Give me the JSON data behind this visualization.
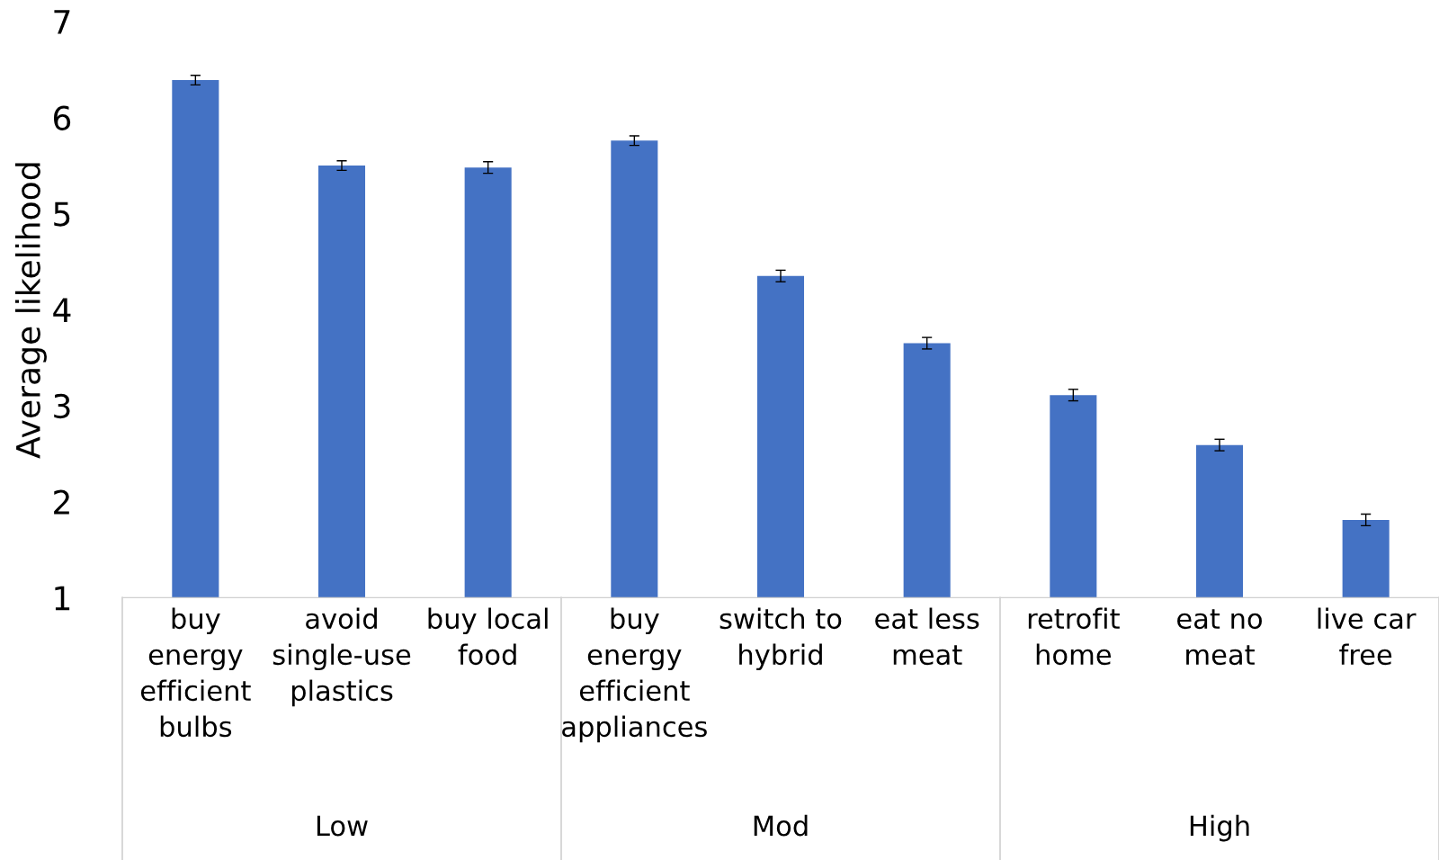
{
  "chart_data": {
    "type": "bar",
    "ylabel": "Average likelihood",
    "categories": [
      "buy energy efficient bulbs",
      "avoid single-use plastics",
      "buy local food",
      "buy energy efficient appliances",
      "switch to hybrid",
      "eat less meat",
      "retrofit home",
      "eat no meat",
      "live car free"
    ],
    "values": [
      6.39,
      5.5,
      5.48,
      5.76,
      4.35,
      3.65,
      3.11,
      2.59,
      1.81
    ],
    "errors": [
      0.05,
      0.05,
      0.06,
      0.05,
      0.06,
      0.06,
      0.06,
      0.06,
      0.06
    ],
    "color": "#4472c4",
    "ylim": [
      1,
      7
    ],
    "yticks": [
      1,
      2,
      3,
      4,
      5,
      6,
      7
    ],
    "annotations": [
      "Low",
      "Mod",
      "High"
    ]
  }
}
